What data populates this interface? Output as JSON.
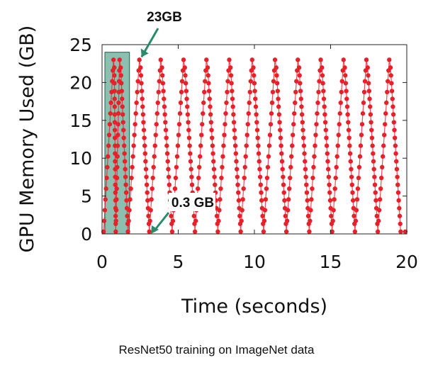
{
  "chart_data": {
    "type": "scatter",
    "title": "",
    "xlabel": "Time (seconds)",
    "ylabel": "GPU Memory Used (GB)",
    "xlim": [
      0,
      20
    ],
    "ylim": [
      0,
      25
    ],
    "xticks": [
      0,
      5,
      10,
      15,
      20
    ],
    "yticks": [
      0,
      5,
      10,
      15,
      20,
      25
    ],
    "grid": false,
    "legend": "none",
    "series_color": "#e8202a",
    "highlight_color": "#2e8b6e",
    "annotation_color": "#2a8a6a",
    "series": [
      {
        "values_description_omitted": true,
        "peaks_x": [
          0.8,
          1.2,
          2.5,
          3.9,
          5.4,
          6.9,
          8.4,
          9.9,
          11.4,
          12.9,
          14.4,
          15.9,
          17.4,
          18.9
        ],
        "troughs_x": [
          0.9,
          1.7,
          3.1,
          4.6,
          6.1,
          7.6,
          9.1,
          10.6,
          12.1,
          13.6,
          15.1,
          16.6,
          18.1,
          19.6
        ],
        "peak_y": 23,
        "trough_y": 0.3
      }
    ],
    "highlight_region": {
      "x": [
        0,
        1.8
      ],
      "y": [
        0,
        24
      ]
    },
    "annotations": [
      {
        "text": "23GB",
        "x": 2.5,
        "y": 23
      },
      {
        "text": "0.3 GB",
        "x": 3.3,
        "y": 0.3
      }
    ]
  },
  "caption": "ResNet50 training on ImageNet data"
}
